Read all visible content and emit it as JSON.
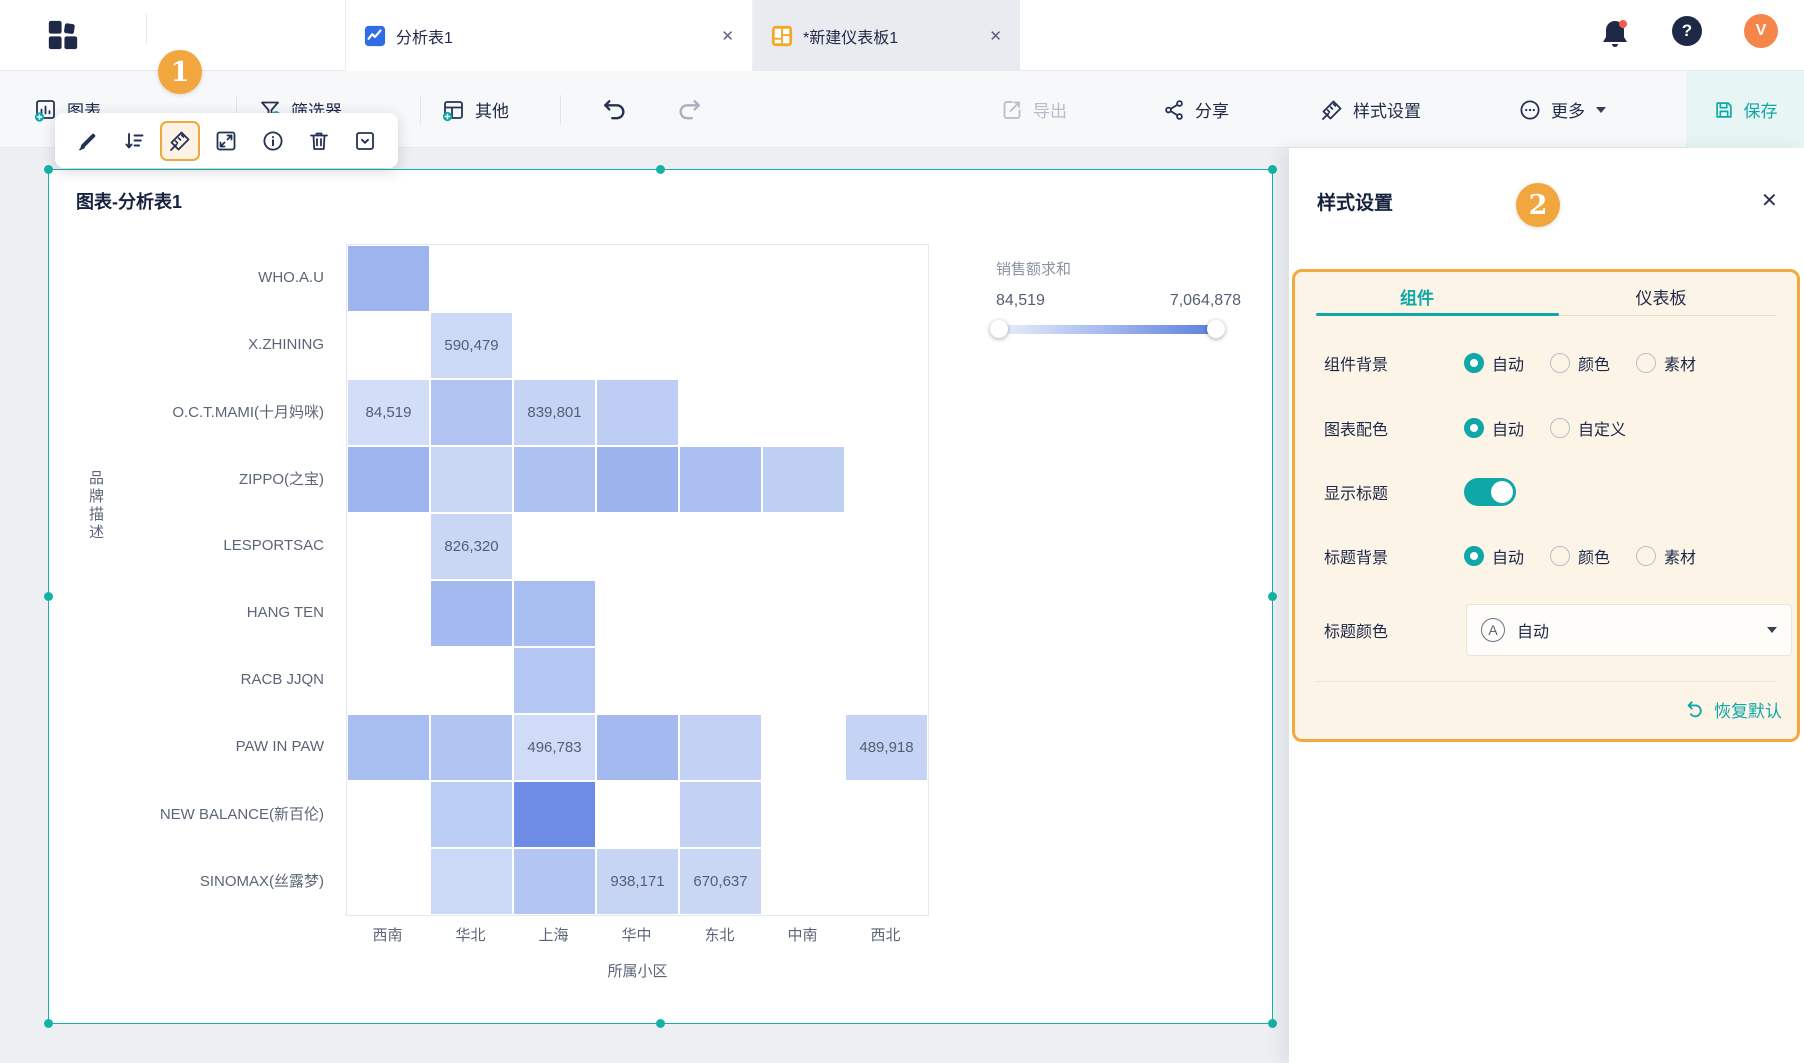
{
  "topbar": {
    "tab1": {
      "label": "分析表1",
      "close": "✕"
    },
    "tab2": {
      "label": "*新建仪表板1",
      "close": "✕"
    },
    "help": "?",
    "avatar": "V"
  },
  "toolbar": {
    "chart": "图表",
    "filter": "筛选器",
    "other": "其他",
    "export": "导出",
    "share": "分享",
    "style": "样式设置",
    "more": "更多",
    "save": "保存"
  },
  "annotations": {
    "step1": "1",
    "step2": "2"
  },
  "widget": {
    "title": "图表-分析表1"
  },
  "chart_data": {
    "type": "heatmap",
    "title": "图表-分析表1",
    "xlabel": "所属小区",
    "ylabel": "品牌描述",
    "x_categories": [
      "西南",
      "华北",
      "上海",
      "华中",
      "东北",
      "中南",
      "西北"
    ],
    "y_categories": [
      "WHO.A.U",
      "X.ZHINING",
      "O.C.T.MAMI(十月妈咪)",
      "ZIPPO(之宝)",
      "LESPORTSAC",
      "HANG TEN",
      "RACB JJQN",
      "PAW IN PAW",
      "NEW BALANCE(新百伦)",
      "SINOMAX(丝露梦)"
    ],
    "legend": {
      "title": "销售额求和",
      "min_label": "84,519",
      "max_label": "7,064,878",
      "min": 84519,
      "max": 7064878
    },
    "cells": [
      {
        "r": 0,
        "c": 0,
        "color": "#9db4ee",
        "label": ""
      },
      {
        "r": 1,
        "c": 1,
        "color": "#ccd9f6",
        "label": "590,479",
        "value": 590479
      },
      {
        "r": 2,
        "c": 0,
        "color": "#d2def7",
        "label": "84,519",
        "value": 84519
      },
      {
        "r": 2,
        "c": 1,
        "color": "#b0c3f1",
        "label": ""
      },
      {
        "r": 2,
        "c": 2,
        "color": "#c5d4f5",
        "label": "839,801",
        "value": 839801
      },
      {
        "r": 2,
        "c": 3,
        "color": "#bdcdf3",
        "label": ""
      },
      {
        "r": 3,
        "c": 0,
        "color": "#9db4ee",
        "label": ""
      },
      {
        "r": 3,
        "c": 1,
        "color": "#c9d7f5",
        "label": ""
      },
      {
        "r": 3,
        "c": 2,
        "color": "#aec2f1",
        "label": ""
      },
      {
        "r": 3,
        "c": 3,
        "color": "#9cb3ee",
        "label": ""
      },
      {
        "r": 3,
        "c": 4,
        "color": "#abc0f0",
        "label": ""
      },
      {
        "r": 3,
        "c": 5,
        "color": "#bfcff4",
        "label": ""
      },
      {
        "r": 4,
        "c": 1,
        "color": "#c9d7f5",
        "label": "826,320",
        "value": 826320
      },
      {
        "r": 5,
        "c": 1,
        "color": "#a3b9ef",
        "label": ""
      },
      {
        "r": 5,
        "c": 2,
        "color": "#a9bef0",
        "label": ""
      },
      {
        "r": 6,
        "c": 2,
        "color": "#b4c6f2",
        "label": ""
      },
      {
        "r": 7,
        "c": 0,
        "color": "#a9bef0",
        "label": ""
      },
      {
        "r": 7,
        "c": 1,
        "color": "#b2c4f1",
        "label": ""
      },
      {
        "r": 7,
        "c": 2,
        "color": "#cfdbf7",
        "label": "496,783",
        "value": 496783
      },
      {
        "r": 7,
        "c": 3,
        "color": "#a3b9ef",
        "label": ""
      },
      {
        "r": 7,
        "c": 4,
        "color": "#c3d2f4",
        "label": ""
      },
      {
        "r": 7,
        "c": 6,
        "color": "#c5d4f5",
        "label": "489,918",
        "value": 489918
      },
      {
        "r": 8,
        "c": 1,
        "color": "#bccdf3",
        "label": ""
      },
      {
        "r": 8,
        "c": 2,
        "color": "#6e8ce5",
        "label": ""
      },
      {
        "r": 8,
        "c": 4,
        "color": "#c2d1f4",
        "label": ""
      },
      {
        "r": 9,
        "c": 1,
        "color": "#ccd9f6",
        "label": ""
      },
      {
        "r": 9,
        "c": 2,
        "color": "#b3c5f1",
        "label": ""
      },
      {
        "r": 9,
        "c": 3,
        "color": "#c7d5f5",
        "label": "938,171",
        "value": 938171
      },
      {
        "r": 9,
        "c": 4,
        "color": "#c9d7f5",
        "label": "670,637",
        "value": 670637
      }
    ]
  },
  "panel": {
    "title": "样式设置",
    "close": "✕",
    "tabs": {
      "component": "组件",
      "dashboard": "仪表板"
    },
    "rows": {
      "bg": {
        "label": "组件背景",
        "options": [
          "自动",
          "颜色",
          "素材"
        ],
        "selected": "自动"
      },
      "palette": {
        "label": "图表配色",
        "options": [
          "自动",
          "自定义"
        ],
        "selected": "自动"
      },
      "show_title": {
        "label": "显示标题",
        "value": "on"
      },
      "title_bg": {
        "label": "标题背景",
        "options": [
          "自动",
          "颜色",
          "素材"
        ],
        "selected": "自动"
      },
      "title_color": {
        "label": "标题颜色",
        "value": "自动",
        "icon_letter": "A"
      }
    },
    "reset": "恢复默认"
  },
  "colors": {
    "teal": "#10a7a7",
    "selection_teal": "#15b2a6",
    "annotation_orange": "#f2a73e",
    "navy": "#263254",
    "tab_icon_blue": "#2f6ce6",
    "tab_icon_orange": "#f6a722",
    "avatar_orange": "#f58549",
    "heat_min": "#e9effb",
    "heat_max": "#5b7fe0"
  }
}
